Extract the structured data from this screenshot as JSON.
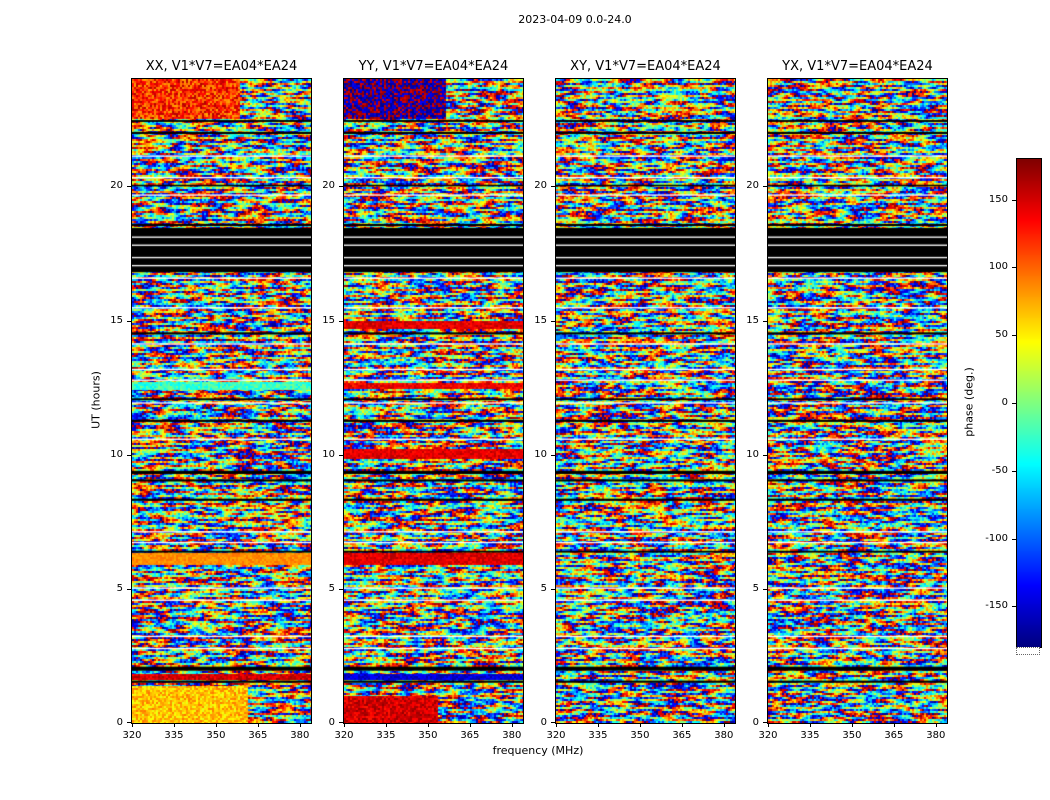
{
  "figure": {
    "title": "2023-04-09 0.0-24.0"
  },
  "chart_data": {
    "type": "heatmap",
    "title": "2023-04-09 0.0-24.0",
    "xlabel": "frequency (MHz)",
    "ylabel": "UT (hours)",
    "x_range": [
      320,
      384
    ],
    "y_range": [
      0,
      24
    ],
    "x_ticks": [
      320,
      335,
      350,
      365,
      380
    ],
    "y_ticks": [
      0,
      5,
      10,
      15,
      20
    ],
    "colormap": "jet",
    "data_description": "Visibility phase vs frequency and time for baseline V1*V7=EA04*EA24; mostly uniform random phase noise -180..180 deg with flagged (black/white) time rows and coherent phase patches",
    "colorbar": {
      "label": "phase (deg.)",
      "ticks": [
        150,
        100,
        50,
        0,
        -50,
        -100,
        -150
      ],
      "range": [
        -180,
        180
      ]
    },
    "flagged_black_time_bands_hours": [
      [
        16.8,
        18.45
      ],
      [
        18.52,
        18.6
      ],
      [
        9.28,
        9.4
      ],
      [
        9.0,
        9.08
      ],
      [
        8.28,
        8.36
      ],
      [
        11.22,
        11.3
      ],
      [
        1.95,
        2.1
      ],
      [
        1.5,
        1.58
      ],
      [
        21.95,
        22.03
      ],
      [
        6.35,
        6.42
      ],
      [
        14.48,
        14.56
      ],
      [
        12.03,
        12.1
      ],
      [
        20.0,
        20.06
      ],
      [
        22.4,
        22.47
      ]
    ],
    "flagged_white_time_bands_hours": [
      [
        17.02,
        17.07
      ],
      [
        17.32,
        17.37
      ],
      [
        17.78,
        17.83
      ],
      [
        18.08,
        18.13
      ],
      [
        16.55,
        16.6
      ],
      [
        15.45,
        15.5
      ],
      [
        13.15,
        13.2
      ],
      [
        10.55,
        10.6
      ],
      [
        7.1,
        7.15
      ],
      [
        4.55,
        4.6
      ],
      [
        3.2,
        3.25
      ],
      [
        5.0,
        5.05
      ],
      [
        2.75,
        2.8
      ],
      [
        11.9,
        11.95
      ],
      [
        19.65,
        19.7
      ],
      [
        20.3,
        20.35
      ],
      [
        21.1,
        21.15
      ],
      [
        12.75,
        12.8
      ],
      [
        14.1,
        14.15
      ],
      [
        6.7,
        6.75
      ]
    ],
    "panels": [
      {
        "pol": "XX",
        "title": "XX, V1*V7=EA04*EA24",
        "coherent_regions": [
          {
            "h": [
              22.55,
              24.0
            ],
            "f": [
              320,
              358
            ],
            "v": 120,
            "j": 45
          },
          {
            "h": [
              0.0,
              1.35
            ],
            "f": [
              320,
              361
            ],
            "v": 65,
            "j": 30
          },
          {
            "h": [
              5.95,
              6.3
            ],
            "f": [
              320,
              384
            ],
            "v": 85,
            "j": 12
          },
          {
            "h": [
              12.45,
              12.7
            ],
            "f": [
              320,
              384
            ],
            "v": -25,
            "j": 25
          },
          {
            "h": [
              1.63,
              1.8
            ],
            "f": [
              320,
              384
            ],
            "v": 150,
            "j": 20
          }
        ]
      },
      {
        "pol": "YY",
        "title": "YY, V1*V7=EA04*EA24",
        "coherent_regions": [
          {
            "h": [
              22.55,
              24.0
            ],
            "f": [
              320,
              356
            ],
            "v": 185,
            "j": 40
          },
          {
            "h": [
              0.0,
              1.0
            ],
            "f": [
              320,
              353
            ],
            "v": 150,
            "j": 25
          },
          {
            "h": [
              5.95,
              6.3
            ],
            "f": [
              320,
              384
            ],
            "v": 145,
            "j": 18
          },
          {
            "h": [
              9.85,
              10.2
            ],
            "f": [
              320,
              384
            ],
            "v": 145,
            "j": 18
          },
          {
            "h": [
              14.7,
              14.95
            ],
            "f": [
              320,
              384
            ],
            "v": 145,
            "j": 18
          },
          {
            "h": [
              12.45,
              12.65
            ],
            "f": [
              320,
              384
            ],
            "v": 140,
            "j": 20
          },
          {
            "h": [
              1.63,
              1.8
            ],
            "f": [
              320,
              384
            ],
            "v": -150,
            "j": 20
          }
        ]
      },
      {
        "pol": "XY",
        "title": "XY, V1*V7=EA04*EA24",
        "coherent_regions": []
      },
      {
        "pol": "YX",
        "title": "YX, V1*V7=EA04*EA24",
        "coherent_regions": []
      }
    ]
  }
}
